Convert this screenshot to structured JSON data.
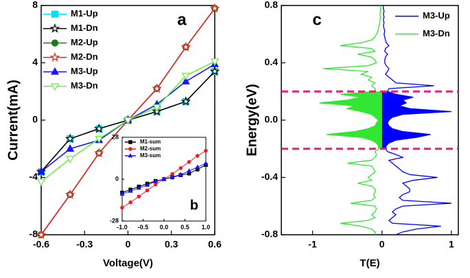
{
  "chart_data": [
    {
      "type": "line",
      "panel_label": "a",
      "xlabel": "Voltage(V)",
      "ylabel": "Current(mA)",
      "x": [
        -0.6,
        -0.4,
        -0.2,
        0,
        0.2,
        0.4,
        0.6
      ],
      "xlim": [
        -0.6,
        0.6
      ],
      "xticks": [
        -0.6,
        -0.3,
        0,
        0.3,
        0.6
      ],
      "ylim": [
        -8,
        8
      ],
      "yticks": [
        -8,
        -4,
        0,
        4,
        8
      ],
      "legend": "upper left",
      "series": [
        {
          "name": "M1-Up",
          "color": "#00e0f0",
          "marker": "square",
          "filled": true,
          "values": [
            -3.6,
            -1.3,
            -0.6,
            0,
            0.6,
            1.3,
            3.4
          ]
        },
        {
          "name": "M1-Dn",
          "color": "#000000",
          "marker": "star",
          "filled": false,
          "values": [
            -3.6,
            -1.3,
            -0.6,
            0,
            0.6,
            1.3,
            3.4
          ]
        },
        {
          "name": "M2-Up",
          "color": "#1a7a1a",
          "marker": "circle",
          "filled": true,
          "values": [
            -8,
            -5.2,
            -2.3,
            0,
            2.2,
            5.1,
            7.8
          ]
        },
        {
          "name": "M2-Dn",
          "color": "#f02020",
          "marker": "star",
          "filled": false,
          "values": [
            -8,
            -5.2,
            -2.3,
            0,
            2.2,
            5.1,
            7.8
          ]
        },
        {
          "name": "M3-Up",
          "color": "#1515ff",
          "marker": "triangle-up",
          "filled": true,
          "values": [
            -3.6,
            -2.0,
            -1.4,
            0,
            1.1,
            2.7,
            3.9
          ]
        },
        {
          "name": "M3-Dn",
          "color": "#66f040",
          "marker": "triangle-down",
          "filled": false,
          "values": [
            -4.3,
            -2.7,
            -1.3,
            0,
            0.9,
            3.1,
            4.1
          ]
        }
      ]
    },
    {
      "type": "line",
      "panel_label": "b",
      "x": [
        -1,
        -0.8,
        -0.6,
        -0.4,
        -0.2,
        0,
        0.2,
        0.4,
        0.6,
        0.8,
        1
      ],
      "xlim": [
        -1,
        1
      ],
      "xticks": [
        {
          "value": -1,
          "label": "-1.0"
        },
        -0.5,
        {
          "value": 0,
          "label": "0.0"
        },
        0.5,
        {
          "value": 1,
          "label": "1.0"
        }
      ],
      "ylim": [
        -28,
        28
      ],
      "yticks": [
        -28,
        0,
        28
      ],
      "legend": "upper left",
      "series": [
        {
          "name": "M1-sum",
          "color": "#000000",
          "marker": "square",
          "filled": true,
          "values": [
            -9,
            -7,
            -5,
            -3,
            -1.2,
            0,
            1.2,
            2.7,
            3.8,
            6.5,
            9.5
          ]
        },
        {
          "name": "M2-sum",
          "color": "#f02020",
          "marker": "circle",
          "filled": true,
          "values": [
            -19,
            -15.5,
            -11.6,
            -7.5,
            -3.5,
            0,
            3.5,
            7.4,
            11.5,
            15.6,
            19
          ]
        },
        {
          "name": "M3-sum",
          "color": "#1515ff",
          "marker": "triangle-up",
          "filled": true,
          "values": [
            -10,
            -8,
            -6,
            -4,
            -1.5,
            0,
            1.5,
            3,
            5.5,
            8,
            10.5
          ]
        }
      ]
    },
    {
      "type": "spectrum",
      "panel_label": "c",
      "xlabel": "T(E)",
      "ylabel": "Energy(eV)",
      "energy": [
        0.8,
        0.78,
        0.76,
        0.74,
        0.72,
        0.7,
        0.68,
        0.66,
        0.64,
        0.62,
        0.6,
        0.58,
        0.56,
        0.54,
        0.52,
        0.5,
        0.48,
        0.46,
        0.44,
        0.42,
        0.4,
        0.38,
        0.36,
        0.34,
        0.32,
        0.3,
        0.28,
        0.26,
        0.24,
        0.22,
        0.2,
        0.18,
        0.16,
        0.14,
        0.12,
        0.1,
        0.08,
        0.06,
        0.04,
        0.02,
        0,
        -0.02,
        -0.04,
        -0.06,
        -0.08,
        -0.1,
        -0.12,
        -0.14,
        -0.16,
        -0.18,
        -0.2,
        -0.22,
        -0.24,
        -0.26,
        -0.28,
        -0.3,
        -0.32,
        -0.34,
        -0.36,
        -0.38,
        -0.4,
        -0.42,
        -0.44,
        -0.46,
        -0.48,
        -0.5,
        -0.52,
        -0.54,
        -0.56,
        -0.58,
        -0.6,
        -0.62,
        -0.64,
        -0.66,
        -0.68,
        -0.7,
        -0.72,
        -0.74,
        -0.76,
        -0.78,
        -0.8
      ],
      "xlim": [
        -1.45,
        1.1
      ],
      "xticks": [
        -1,
        0,
        1
      ],
      "ylim": [
        -0.8,
        0.8
      ],
      "yticks": [
        0.8,
        0.4,
        {
          "value": 0,
          "label": "0.0"
        },
        -0.4,
        -0.8
      ],
      "hlines": [
        0.2,
        -0.2
      ],
      "hline_color": "#e8207a",
      "legend": "upper right",
      "series": [
        {
          "name": "M3-Up",
          "color": "#0000ff",
          "values": [
            0.02,
            0.02,
            0.03,
            0.02,
            0.03,
            0.02,
            0.03,
            0.02,
            0.03,
            0.04,
            0.03,
            0.04,
            0.05,
            0.06,
            0.1,
            0.05,
            0.04,
            0.08,
            0.05,
            0.04,
            0.04,
            0.06,
            0.1,
            0.08,
            0.05,
            0.1,
            0.15,
            0.2,
            0.75,
            0.1,
            0.08,
            0.2,
            0.45,
            0.3,
            0.35,
            0.25,
            0.4,
            1.0,
            0.3,
            0.15,
            0.1,
            0.08,
            0.1,
            0.15,
            0.3,
            0.7,
            0.5,
            0.2,
            0.1,
            0.06,
            0.05,
            0.08,
            0.2,
            0.3,
            0.1,
            0.15,
            0.2,
            0.25,
            0.3,
            0.4,
            0.8,
            0.45,
            0.3,
            0.35,
            0.4,
            0.4,
            0.3,
            0.25,
            0.3,
            1.0,
            0.3,
            0.2,
            0.15,
            0.2,
            0.15,
            0.1,
            0.15,
            0.85,
            0.5,
            0.3,
            0.2
          ]
        },
        {
          "name": "M3-Dn",
          "color": "#33e633",
          "values": [
            -0.02,
            -0.02,
            -0.02,
            -0.03,
            -0.02,
            -0.03,
            -0.03,
            -0.04,
            -0.05,
            -0.06,
            -0.08,
            -0.1,
            -0.15,
            -0.3,
            -0.6,
            -0.15,
            -0.1,
            -0.35,
            -0.15,
            -0.1,
            -0.08,
            -0.2,
            -0.85,
            -0.2,
            -0.3,
            -0.15,
            -0.2,
            -0.1,
            -0.15,
            -0.1,
            -0.1,
            -0.6,
            -0.3,
            -0.5,
            -0.9,
            -0.4,
            -0.5,
            -0.3,
            -0.15,
            -0.1,
            -0.05,
            -0.08,
            -0.1,
            -0.2,
            -0.4,
            -0.8,
            -0.3,
            -0.15,
            -0.08,
            -0.05,
            -0.05,
            -0.1,
            -0.08,
            -0.1,
            -0.15,
            -0.5,
            -0.15,
            -0.12,
            -0.1,
            -0.15,
            -0.2,
            -0.15,
            -0.35,
            -0.15,
            -0.1,
            -0.1,
            -0.12,
            -0.1,
            -0.15,
            -0.45,
            -0.1,
            -0.08,
            -0.1,
            -0.15,
            -0.1,
            -0.2,
            -0.6,
            -0.3,
            -0.15,
            -0.1,
            -0.1
          ]
        }
      ]
    }
  ]
}
